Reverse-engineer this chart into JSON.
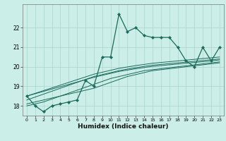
{
  "xlabel": "Humidex (Indice chaleur)",
  "bg_color": "#cceee8",
  "grid_color": "#aad4cc",
  "line_color": "#1a6b5a",
  "x_ticks": [
    0,
    1,
    2,
    3,
    4,
    5,
    6,
    7,
    8,
    9,
    10,
    11,
    12,
    13,
    14,
    15,
    16,
    17,
    18,
    19,
    20,
    21,
    22,
    23
  ],
  "y_ticks": [
    18,
    19,
    20,
    21,
    22
  ],
  "ylim": [
    17.5,
    23.2
  ],
  "xlim": [
    -0.5,
    23.5
  ],
  "main_data": [
    18.5,
    18.0,
    17.7,
    18.0,
    18.1,
    18.2,
    18.3,
    19.3,
    19.0,
    20.5,
    20.5,
    22.7,
    21.8,
    22.0,
    21.6,
    21.5,
    21.5,
    21.5,
    21.0,
    20.3,
    20.0,
    21.0,
    20.3,
    21.0
  ],
  "trend_low1": [
    18.1,
    18.2,
    18.3,
    18.4,
    18.5,
    18.6,
    18.7,
    18.8,
    18.9,
    19.05,
    19.2,
    19.35,
    19.5,
    19.6,
    19.7,
    19.8,
    19.85,
    19.9,
    19.95,
    20.0,
    20.05,
    20.1,
    20.15,
    20.2
  ],
  "trend_low2": [
    18.0,
    18.1,
    18.2,
    18.35,
    18.5,
    18.65,
    18.8,
    18.95,
    19.1,
    19.25,
    19.4,
    19.5,
    19.6,
    19.7,
    19.8,
    19.85,
    19.9,
    19.95,
    20.0,
    20.05,
    20.1,
    20.15,
    20.2,
    20.25
  ],
  "trend_high1": [
    18.3,
    18.45,
    18.6,
    18.75,
    18.9,
    19.05,
    19.2,
    19.35,
    19.5,
    19.6,
    19.7,
    19.8,
    19.88,
    19.95,
    20.02,
    20.08,
    20.12,
    20.16,
    20.2,
    20.24,
    20.28,
    20.32,
    20.36,
    20.4
  ],
  "trend_high2": [
    18.5,
    18.62,
    18.74,
    18.86,
    18.98,
    19.1,
    19.22,
    19.34,
    19.46,
    19.56,
    19.66,
    19.76,
    19.83,
    19.9,
    19.96,
    20.02,
    20.06,
    20.1,
    20.14,
    20.18,
    20.22,
    20.26,
    20.3,
    20.35
  ],
  "trend_high3": [
    18.5,
    18.64,
    18.78,
    18.92,
    19.06,
    19.2,
    19.34,
    19.48,
    19.62,
    19.72,
    19.82,
    19.92,
    19.99,
    20.06,
    20.12,
    20.18,
    20.22,
    20.26,
    20.3,
    20.34,
    20.38,
    20.42,
    20.46,
    20.5
  ]
}
